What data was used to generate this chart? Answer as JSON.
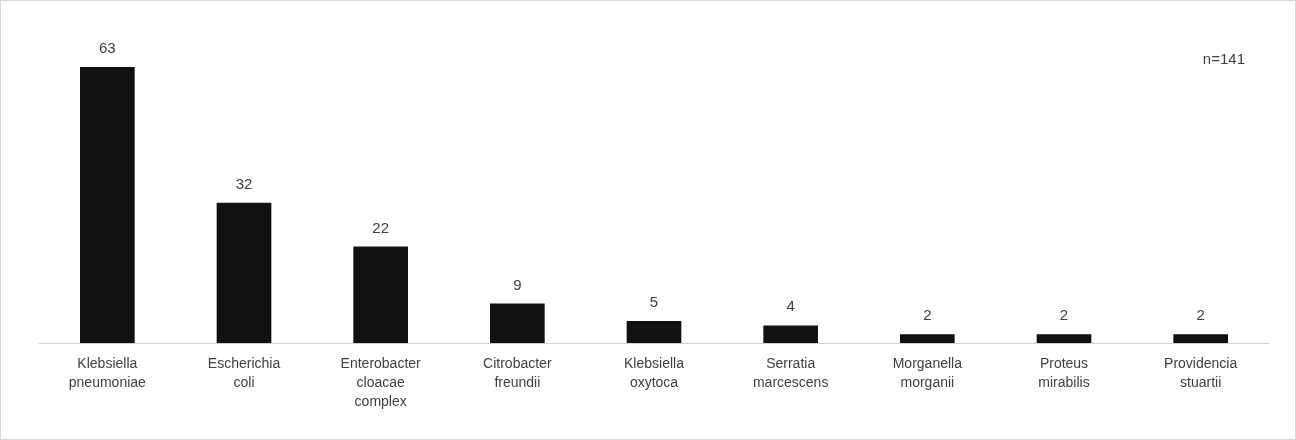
{
  "chart_data": {
    "type": "bar",
    "categories": [
      "Klebsiella pneumoniae",
      "Escherichia coli",
      "Enterobacter cloacae complex",
      "Citrobacter freundii",
      "Klebsiella oxytoca",
      "Serratia marcescens",
      "Morganella morganii",
      "Proteus mirabilis",
      "Providencia stuartii"
    ],
    "values": [
      63,
      32,
      22,
      9,
      5,
      4,
      2,
      2,
      2
    ],
    "color": "#111111",
    "data_labels": true,
    "annotations": [
      "n=141"
    ]
  }
}
